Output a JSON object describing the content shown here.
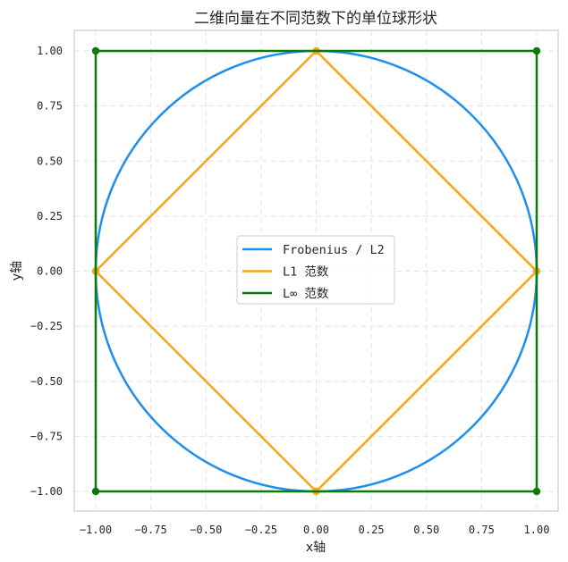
{
  "chart_data": {
    "type": "line",
    "title": "二维向量在不同范数下的单位球形状",
    "xlabel": "x轴",
    "ylabel": "y轴",
    "xlim": [
      -1.1,
      1.1
    ],
    "ylim": [
      -1.1,
      1.1
    ],
    "x_ticks": [
      -1.0,
      -0.75,
      -0.5,
      -0.25,
      0.0,
      0.25,
      0.5,
      0.75,
      1.0
    ],
    "y_ticks": [
      -1.0,
      -0.75,
      -0.5,
      -0.25,
      0.0,
      0.25,
      0.5,
      0.75,
      1.0
    ],
    "x_tick_labels": [
      "−1.00",
      "−0.75",
      "−0.50",
      "−0.25",
      "0.00",
      "0.25",
      "0.50",
      "0.75",
      "1.00"
    ],
    "y_tick_labels": [
      "−1.00",
      "−0.75",
      "−0.50",
      "−0.25",
      "0.00",
      "0.25",
      "0.50",
      "0.75",
      "1.00"
    ],
    "grid": true,
    "legend_position": "center",
    "series": [
      {
        "name": "Frobenius / L2",
        "color": "#1f8fef",
        "shape": "unit circle",
        "markers": false
      },
      {
        "name": "L1 范数",
        "color": "#f5a80f",
        "x": [
          1,
          0,
          -1,
          0,
          1
        ],
        "y": [
          0,
          1,
          0,
          -1,
          0
        ],
        "markers": true
      },
      {
        "name": "L∞ 范数",
        "color": "#0b7a0b",
        "x": [
          1,
          -1,
          -1,
          1,
          1
        ],
        "y": [
          1,
          1,
          -1,
          -1,
          1
        ],
        "markers": true
      }
    ]
  }
}
